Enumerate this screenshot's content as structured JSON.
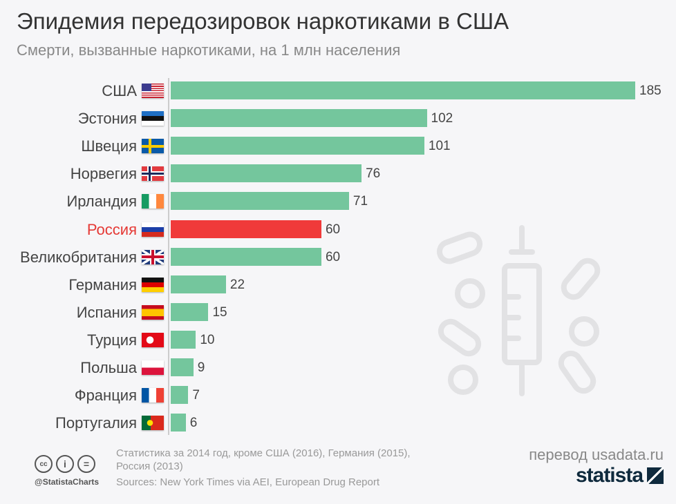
{
  "title": "Эпидемия передозировок наркотиками в США",
  "subtitle": "Смерти, вызванные наркотиками, на 1 млн населения",
  "chart_data": {
    "type": "bar",
    "orientation": "horizontal",
    "categories": [
      "США",
      "Эстония",
      "Швеция",
      "Норвегия",
      "Ирландия",
      "Россия",
      "Великобритания",
      "Германия",
      "Испания",
      "Турция",
      "Польша",
      "Франция",
      "Португалия"
    ],
    "values": [
      185,
      102,
      101,
      76,
      71,
      60,
      60,
      22,
      15,
      10,
      9,
      7,
      6
    ],
    "flags": [
      "us",
      "ee",
      "se",
      "no",
      "ie",
      "ru",
      "gb",
      "de",
      "es",
      "tr",
      "pl",
      "fr",
      "pt"
    ],
    "highlight": "Россия",
    "colors": {
      "bar": "#74c69d",
      "highlight": "#f03a3a",
      "highlight_label": "#e53935"
    },
    "xlim": [
      0,
      185
    ]
  },
  "footer": {
    "note1": "Статистика за 2014 год, кроме США (2016), Германия (2015),",
    "note2": "Россия (2013)",
    "sources": "Sources: New York Times via AEI, European Drug Report",
    "handle": "@StatistaCharts",
    "translation": "перевод usadata.ru",
    "brand": "statista"
  }
}
